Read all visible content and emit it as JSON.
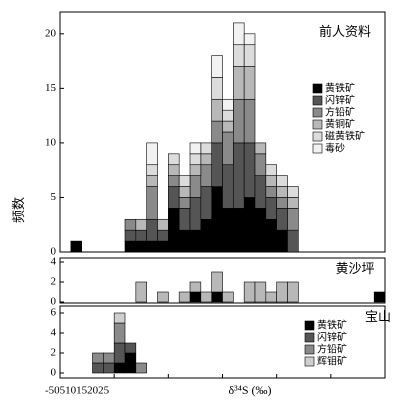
{
  "chart_data": [
    {
      "type": "histogram",
      "title": "前人资料",
      "y_label": "频数",
      "legend": "right",
      "bins": [
        -4,
        -3,
        -2,
        -1,
        0,
        1,
        2,
        3,
        4,
        5,
        6,
        7,
        8,
        9,
        10,
        11,
        12,
        13,
        14,
        15,
        16,
        17
      ],
      "ylim": [
        0,
        22
      ],
      "yticks": [
        0,
        5,
        10,
        15,
        20
      ],
      "series": [
        {
          "name": "黄铁矿",
          "color": "#000000",
          "values": [
            1,
            0,
            0,
            0,
            0,
            1,
            1,
            1,
            1,
            4,
            2,
            2,
            3,
            6,
            4,
            4,
            5,
            4,
            3,
            2,
            0
          ]
        },
        {
          "name": "闪锌矿",
          "color": "#555555",
          "values": [
            0,
            0,
            0,
            0,
            0,
            1,
            1,
            2,
            1,
            2,
            2,
            3,
            3,
            4,
            4,
            6,
            5,
            3,
            2,
            2,
            2
          ]
        },
        {
          "name": "方铅矿",
          "color": "#8a8a8a",
          "values": [
            0,
            0,
            0,
            0,
            0,
            1,
            0,
            3,
            0,
            1,
            1,
            2,
            2,
            2,
            3,
            4,
            4,
            2,
            1,
            1,
            2
          ]
        },
        {
          "name": "黄铜矿",
          "color": "#b8b8b8",
          "values": [
            0,
            0,
            0,
            0,
            0,
            0,
            1,
            1,
            1,
            1,
            1,
            1,
            1,
            2,
            1,
            3,
            3,
            1,
            1,
            1,
            1
          ]
        },
        {
          "name": "磁黄铁矿",
          "color": "#dcdcdc",
          "values": [
            0,
            0,
            0,
            0,
            0,
            0,
            0,
            1,
            0,
            1,
            1,
            1,
            1,
            2,
            1,
            2,
            2,
            0,
            1,
            1,
            1
          ]
        },
        {
          "name": "毒砂",
          "color": "#f2f2f2",
          "values": [
            0,
            0,
            0,
            0,
            0,
            0,
            0,
            2,
            0,
            0,
            0,
            1,
            0,
            2,
            1,
            2,
            1,
            0,
            0,
            0,
            0
          ]
        }
      ]
    },
    {
      "type": "histogram",
      "title": "黄沙坪",
      "bins": [
        2,
        3,
        4,
        5,
        6,
        7,
        8,
        9,
        10,
        11,
        12,
        13,
        14,
        15,
        16,
        17,
        18,
        19,
        20,
        21,
        22,
        23,
        24,
        25
      ],
      "ylim": [
        0,
        4
      ],
      "yticks": [
        0,
        2,
        4
      ],
      "series": [
        {
          "name": "黄铁矿",
          "color": "#000000",
          "values": [
            0,
            0,
            0,
            0,
            0,
            1,
            0,
            1,
            0,
            0,
            0,
            0,
            0,
            0,
            0,
            0,
            0,
            0,
            0,
            0,
            0,
            0,
            1
          ]
        },
        {
          "name": "黄铜矿",
          "color": "#b8b8b8",
          "values": [
            2,
            0,
            1,
            0,
            1,
            1,
            1,
            2,
            1,
            0,
            2,
            2,
            1,
            2,
            2,
            0,
            0,
            0,
            0,
            0,
            0,
            0,
            0
          ]
        }
      ]
    },
    {
      "type": "histogram",
      "title": "宝山",
      "x_label": "δ³⁴S (‰)",
      "legend": "right",
      "bins": [
        -2,
        -1,
        0,
        1,
        2,
        3
      ],
      "ylim": [
        0,
        6
      ],
      "yticks": [
        0,
        2,
        4,
        6
      ],
      "xlim": [
        -5,
        25
      ],
      "xticks": [
        -5,
        0,
        5,
        10,
        15,
        20,
        25
      ],
      "series": [
        {
          "name": "黄铁矿",
          "color": "#000000",
          "values": [
            0,
            0,
            1,
            2,
            0
          ]
        },
        {
          "name": "闪锌矿",
          "color": "#555555",
          "values": [
            1,
            1,
            2,
            1,
            0
          ]
        },
        {
          "name": "方铅矿",
          "color": "#8a8a8a",
          "values": [
            1,
            1,
            2,
            0,
            1
          ]
        },
        {
          "name": "辉钼矿",
          "color": "#cfcfcf",
          "values": [
            0,
            0,
            1,
            0,
            0
          ]
        }
      ]
    }
  ]
}
